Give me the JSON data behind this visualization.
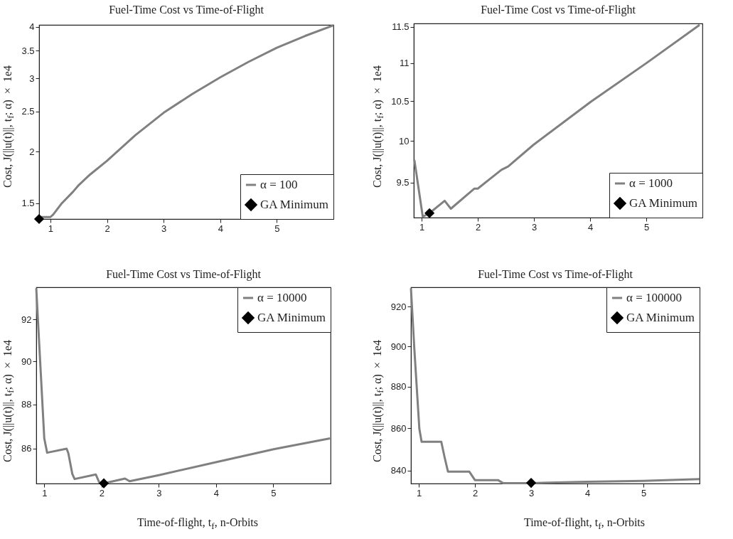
{
  "chart_data": [
    {
      "type": "line",
      "title": "Fuel-Time Cost vs Time-of-Flight",
      "ylabel": "Cost, J(||u(t)||, t$_{f}$; α) × 1e4",
      "log": true,
      "legend": "bottom right",
      "xlim": [
        0.8,
        6
      ],
      "xticks": [
        1,
        2,
        3,
        4,
        5
      ],
      "ylim": [
        1.375,
        4.04
      ],
      "yticks": [
        1.5,
        2,
        2.5,
        3,
        3.5,
        4
      ],
      "series": [
        {
          "name": "α = 100",
          "color": "#808080",
          "x": [
            0.83,
            1.0,
            1.05,
            1.2,
            1.4,
            1.5,
            1.7,
            2.0,
            2.5,
            3.0,
            3.5,
            4.0,
            4.5,
            5.0,
            5.5,
            6.0
          ],
          "values": [
            1.39,
            1.39,
            1.41,
            1.5,
            1.6,
            1.66,
            1.76,
            1.9,
            2.19,
            2.48,
            2.75,
            3.02,
            3.29,
            3.56,
            3.8,
            4.03
          ]
        },
        {
          "name": "GA Minimum",
          "type": "scatter",
          "marker": "diamond",
          "color": "#000000",
          "x": [
            0.8
          ],
          "values": [
            1.375
          ]
        }
      ]
    },
    {
      "type": "line",
      "title": "Fuel-Time Cost vs Time-of-Flight",
      "ylabel": "Cost, J(||u(t)||, t$_{f}$; α) × 1e4",
      "log": true,
      "legend": "bottom right",
      "xlim": [
        0.86,
        6
      ],
      "xticks": [
        1,
        2,
        3,
        4,
        5
      ],
      "ylim": [
        9.1,
        11.55
      ],
      "yticks": [
        9.5,
        10,
        10.5,
        11,
        11.5
      ],
      "series": [
        {
          "name": "α = 1000",
          "color": "#808080",
          "x": [
            0.87,
            1.02,
            1.14,
            1.41,
            1.52,
            1.94,
            2.0,
            2.42,
            2.54,
            2.99,
            4.01,
            5.0,
            5.95
          ],
          "values": [
            9.77,
            9.11,
            9.15,
            9.29,
            9.2,
            9.43,
            9.43,
            9.65,
            9.69,
            9.95,
            10.49,
            11.0,
            11.53
          ]
        },
        {
          "name": "GA Minimum",
          "type": "scatter",
          "marker": "diamond",
          "color": "#000000",
          "x": [
            1.14
          ],
          "values": [
            9.15
          ]
        }
      ]
    },
    {
      "type": "line",
      "title": "Fuel-Time Cost vs Time-of-Flight",
      "ylabel": "Cost, J(||u(t)||, t$_{f}$; α) × 1e4",
      "xlabel": "Time-of-flight, t$_{f}$, n-Orbits",
      "log": true,
      "legend": "top right",
      "xlim": [
        0.86,
        6
      ],
      "xticks": [
        1,
        2,
        3,
        4,
        5
      ],
      "ylim": [
        84.45,
        93.55
      ],
      "yticks": [
        86,
        88,
        90,
        92
      ],
      "series": [
        {
          "name": "α = 10000",
          "color": "#808080",
          "x": [
            0.86,
            1.0,
            1.05,
            1.39,
            1.42,
            1.49,
            1.53,
            1.9,
            1.96,
            2.04,
            2.41,
            2.49,
            3.0,
            4.01,
            5.02,
            5.99
          ],
          "values": [
            93.5,
            86.46,
            85.82,
            86.0,
            85.8,
            84.87,
            84.65,
            84.85,
            84.5,
            84.46,
            84.67,
            84.55,
            84.82,
            85.4,
            85.98,
            86.46
          ]
        },
        {
          "name": "GA Minimum",
          "type": "scatter",
          "marker": "diamond",
          "color": "#000000",
          "x": [
            2.04
          ],
          "values": [
            84.46
          ]
        }
      ]
    },
    {
      "type": "line",
      "title": "Fuel-Time Cost vs Time-of-Flight",
      "ylabel": "Cost, J(||u(t)||, t$_{f}$; α) × 1e4",
      "xlabel": "Time-of-flight, t$_{f}$, n-Orbits",
      "log": true,
      "legend": "top right",
      "xlim": [
        0.86,
        6
      ],
      "xticks": [
        1,
        2,
        3,
        4,
        5
      ],
      "ylim": [
        834,
        930
      ],
      "yticks": [
        840,
        860,
        880,
        900,
        920
      ],
      "series": [
        {
          "name": "α = 100000",
          "color": "#808080",
          "x": [
            0.86,
            0.92,
            1.01,
            1.05,
            1.4,
            1.46,
            1.52,
            1.9,
            2.0,
            2.41,
            2.5,
            3.0,
            4.0,
            5.0,
            6.0
          ],
          "values": [
            929.5,
            899,
            859.7,
            853.6,
            853.6,
            846.2,
            839.5,
            839.5,
            835.6,
            835.6,
            834.2,
            834.2,
            834.8,
            835.2,
            836.1
          ]
        },
        {
          "name": "GA Minimum",
          "type": "scatter",
          "marker": "diamond",
          "color": "#000000",
          "x": [
            3.0
          ],
          "values": [
            834.3
          ]
        }
      ]
    }
  ]
}
